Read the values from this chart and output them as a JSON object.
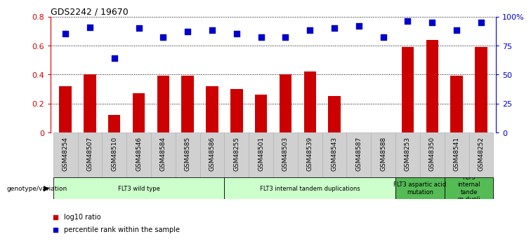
{
  "title": "GDS2242 / 19670",
  "categories": [
    "GSM48254",
    "GSM48507",
    "GSM48510",
    "GSM48546",
    "GSM48584",
    "GSM48585",
    "GSM48586",
    "GSM48255",
    "GSM48501",
    "GSM48503",
    "GSM48539",
    "GSM48543",
    "GSM48587",
    "GSM48588",
    "GSM48253",
    "GSM48350",
    "GSM48541",
    "GSM48252"
  ],
  "bar_values": [
    0.32,
    0.4,
    0.12,
    0.27,
    0.39,
    0.39,
    0.32,
    0.3,
    0.26,
    0.4,
    0.42,
    0.25,
    0.0,
    0.0,
    0.59,
    0.64,
    0.39,
    0.59
  ],
  "scatter_percentiles": [
    85,
    91,
    64,
    90,
    82,
    87,
    88,
    85,
    82,
    82,
    88,
    90,
    92,
    82,
    96,
    95,
    88,
    95
  ],
  "bar_color": "#cc0000",
  "scatter_color": "#0000cc",
  "ylim_left": [
    0,
    0.8
  ],
  "ylim_right": [
    0,
    100
  ],
  "yticks_left": [
    0,
    0.2,
    0.4,
    0.6,
    0.8
  ],
  "ytick_labels_left": [
    "0",
    "0.2",
    "0.4",
    "0.6",
    "0.8"
  ],
  "ytick_labels_right": [
    "0",
    "25",
    "50",
    "75",
    "100%"
  ],
  "groups": [
    {
      "label": "FLT3 wild type",
      "start": 0,
      "end": 7,
      "color": "#ccffcc"
    },
    {
      "label": "FLT3 internal tandem duplications",
      "start": 7,
      "end": 14,
      "color": "#ccffcc"
    },
    {
      "label": "FLT3 aspartic acid\nmutation",
      "start": 14,
      "end": 16,
      "color": "#55bb55"
    },
    {
      "label": "FLT3\ninternal\ntande\nm dupli",
      "start": 16,
      "end": 18,
      "color": "#55bb55"
    }
  ],
  "group_label_prefix": "genotype/variation",
  "legend_items": [
    {
      "label": "log10 ratio",
      "color": "#cc0000",
      "marker": "s"
    },
    {
      "label": "percentile rank within the sample",
      "color": "#0000cc",
      "marker": "s"
    }
  ],
  "bar_width": 0.5,
  "background_color": "#ffffff"
}
